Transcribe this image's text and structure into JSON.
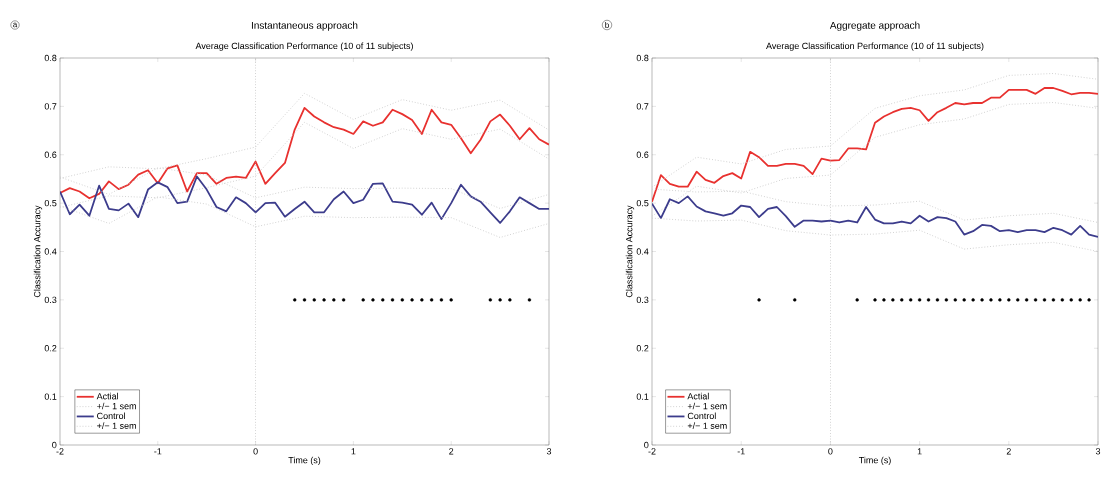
{
  "chart_data": [
    {
      "type": "line",
      "title": "Instantaneous approach",
      "subtitle": "Average Classification Performance (10 of 11 subjects)",
      "xlabel": "Time (s)",
      "ylabel": "Classification Accuracy",
      "annotations": [
        "a"
      ],
      "x": [
        -2,
        -1.9,
        -1.8,
        -1.7,
        -1.6,
        -1.5,
        -1.4,
        -1.3,
        -1.2,
        -1.1,
        -1,
        -0.9,
        -0.8,
        -0.7,
        -0.6,
        -0.5,
        -0.4,
        -0.3,
        -0.2,
        -0.1,
        0,
        0.1,
        0.2,
        0.3,
        0.4,
        0.5,
        0.6,
        0.7,
        0.8,
        0.9,
        1,
        1.1,
        1.2,
        1.3,
        1.4,
        1.5,
        1.6,
        1.7,
        1.8,
        1.9,
        2,
        2.1,
        2.2,
        2.3,
        2.4,
        2.5,
        2.6,
        2.7,
        2.8,
        2.9,
        3
      ],
      "series": [
        {
          "name": "Actial",
          "color": "#e8312f",
          "values": [
            0.521,
            0.531,
            0.524,
            0.51,
            0.519,
            0.545,
            0.529,
            0.538,
            0.559,
            0.568,
            0.541,
            0.572,
            0.578,
            0.524,
            0.562,
            0.562,
            0.54,
            0.552,
            0.555,
            0.552,
            0.586,
            0.54,
            0.562,
            0.583,
            0.652,
            0.697,
            0.679,
            0.667,
            0.657,
            0.652,
            0.643,
            0.669,
            0.66,
            0.667,
            0.693,
            0.684,
            0.672,
            0.643,
            0.693,
            0.667,
            0.662,
            0.634,
            0.603,
            0.631,
            0.669,
            0.683,
            0.66,
            0.632,
            0.655,
            0.632,
            0.621
          ]
        },
        {
          "name": "+/− 1 sem",
          "color": "#c8c8c8",
          "line_style": "dotted",
          "x": [
            -2,
            -1.5,
            -1,
            -0.5,
            0,
            0.5,
            1,
            1.5,
            2,
            2.5,
            3
          ],
          "values": [
            0.551,
            0.575,
            0.571,
            0.592,
            0.616,
            0.727,
            0.673,
            0.714,
            0.692,
            0.713,
            0.651
          ]
        },
        {
          "color": "#c8c8c8",
          "line_style": "dotted",
          "x": [
            -2,
            -1.5,
            -1,
            -0.5,
            0,
            0.5,
            1,
            1.5,
            2,
            2.5,
            3
          ],
          "values": [
            0.491,
            0.515,
            0.511,
            0.532,
            0.556,
            0.667,
            0.613,
            0.654,
            0.632,
            0.653,
            0.591
          ]
        },
        {
          "name": "Control",
          "color": "#3c3c8c",
          "values": [
            0.524,
            0.477,
            0.497,
            0.474,
            0.536,
            0.488,
            0.485,
            0.499,
            0.471,
            0.528,
            0.543,
            0.533,
            0.5,
            0.503,
            0.555,
            0.528,
            0.492,
            0.483,
            0.512,
            0.5,
            0.481,
            0.5,
            0.501,
            0.472,
            0.488,
            0.503,
            0.481,
            0.481,
            0.508,
            0.524,
            0.5,
            0.507,
            0.54,
            0.541,
            0.503,
            0.501,
            0.497,
            0.476,
            0.501,
            0.467,
            0.5,
            0.538,
            0.514,
            0.503,
            0.481,
            0.459,
            0.483,
            0.512,
            0.5,
            0.488,
            0.488
          ]
        },
        {
          "name": "+/− 1 sem",
          "color": "#c8c8c8",
          "line_style": "dotted",
          "x": [
            -2,
            -1.5,
            -1,
            -0.5,
            0,
            0.5,
            1,
            1.5,
            2,
            2.5,
            3
          ],
          "values": [
            0.554,
            0.518,
            0.573,
            0.558,
            0.511,
            0.533,
            0.53,
            0.531,
            0.53,
            0.489,
            0.518
          ]
        },
        {
          "color": "#c8c8c8",
          "line_style": "dotted",
          "x": [
            -2,
            -1.5,
            -1,
            -0.5,
            0,
            0.5,
            1,
            1.5,
            2,
            2.5,
            3
          ],
          "values": [
            0.494,
            0.458,
            0.513,
            0.498,
            0.451,
            0.473,
            0.47,
            0.471,
            0.47,
            0.429,
            0.458
          ]
        },
        {
          "type": "scatter",
          "marker": "circle",
          "color": "#000000",
          "x": [
            0.4,
            0.5,
            0.6,
            0.7,
            0.8,
            0.9,
            1.1,
            1.2,
            1.3,
            1.4,
            1.5,
            1.6,
            1.7,
            1.8,
            1.9,
            2.0,
            2.4,
            2.5,
            2.6,
            2.8
          ],
          "values": [
            0.3,
            0.3,
            0.3,
            0.3,
            0.3,
            0.3,
            0.3,
            0.3,
            0.3,
            0.3,
            0.3,
            0.3,
            0.3,
            0.3,
            0.3,
            0.3,
            0.3,
            0.3,
            0.3,
            0.3
          ]
        }
      ],
      "ref_lines": [
        {
          "axis": "x",
          "value": 0,
          "color": "#b4b4b4",
          "line_style": "dotted"
        }
      ],
      "xlim": [
        -2,
        3
      ],
      "ylim": [
        0,
        0.8
      ],
      "xticks": [
        -2,
        -1,
        0,
        1,
        2,
        3
      ],
      "yticks": [
        0,
        0.1,
        0.2,
        0.3,
        0.4,
        0.5,
        0.6,
        0.7,
        0.8
      ],
      "legend": "bottom left"
    },
    {
      "type": "line",
      "title": "Aggregate approach",
      "subtitle": "Average Classification Performance (10 of 11 subjects)",
      "xlabel": "Time (s)",
      "ylabel": "Classification Accuracy",
      "annotations": [
        "b"
      ],
      "x": [
        -2,
        -1.9,
        -1.8,
        -1.7,
        -1.6,
        -1.5,
        -1.4,
        -1.3,
        -1.2,
        -1.1,
        -1,
        -0.9,
        -0.8,
        -0.7,
        -0.6,
        -0.5,
        -0.4,
        -0.3,
        -0.2,
        -0.1,
        0,
        0.1,
        0.2,
        0.3,
        0.4,
        0.5,
        0.6,
        0.7,
        0.8,
        0.9,
        1,
        1.1,
        1.2,
        1.3,
        1.4,
        1.5,
        1.6,
        1.7,
        1.8,
        1.9,
        2,
        2.1,
        2.2,
        2.3,
        2.4,
        2.5,
        2.6,
        2.7,
        2.8,
        2.9,
        3
      ],
      "series": [
        {
          "name": "Actial",
          "color": "#e8312f",
          "values": [
            0.503,
            0.558,
            0.54,
            0.534,
            0.534,
            0.565,
            0.548,
            0.542,
            0.556,
            0.562,
            0.551,
            0.606,
            0.595,
            0.577,
            0.577,
            0.581,
            0.581,
            0.577,
            0.56,
            0.592,
            0.588,
            0.589,
            0.613,
            0.613,
            0.611,
            0.666,
            0.679,
            0.688,
            0.695,
            0.697,
            0.692,
            0.67,
            0.688,
            0.697,
            0.707,
            0.704,
            0.707,
            0.707,
            0.718,
            0.718,
            0.734,
            0.734,
            0.734,
            0.726,
            0.738,
            0.738,
            0.732,
            0.725,
            0.728,
            0.728,
            0.726
          ]
        },
        {
          "name": "+/− 1 sem",
          "color": "#c8c8c8",
          "line_style": "dotted",
          "x": [
            -2,
            -1.5,
            -1,
            -0.5,
            0,
            0.5,
            1,
            1.5,
            2,
            2.5,
            3
          ],
          "values": [
            0.533,
            0.595,
            0.581,
            0.611,
            0.618,
            0.696,
            0.722,
            0.734,
            0.764,
            0.768,
            0.756
          ]
        },
        {
          "color": "#c8c8c8",
          "line_style": "dotted",
          "x": [
            -2,
            -1.5,
            -1,
            -0.5,
            0,
            0.5,
            1,
            1.5,
            2,
            2.5,
            3
          ],
          "values": [
            0.473,
            0.535,
            0.521,
            0.551,
            0.558,
            0.636,
            0.662,
            0.674,
            0.704,
            0.708,
            0.696
          ]
        },
        {
          "name": "Control",
          "color": "#3c3c8c",
          "values": [
            0.499,
            0.469,
            0.508,
            0.5,
            0.514,
            0.493,
            0.483,
            0.479,
            0.474,
            0.479,
            0.495,
            0.492,
            0.471,
            0.488,
            0.492,
            0.473,
            0.451,
            0.464,
            0.464,
            0.462,
            0.464,
            0.46,
            0.464,
            0.46,
            0.492,
            0.466,
            0.458,
            0.458,
            0.462,
            0.458,
            0.474,
            0.462,
            0.471,
            0.469,
            0.462,
            0.435,
            0.442,
            0.455,
            0.453,
            0.442,
            0.444,
            0.44,
            0.444,
            0.444,
            0.44,
            0.449,
            0.444,
            0.435,
            0.453,
            0.435,
            0.43
          ]
        },
        {
          "name": "+/− 1 sem",
          "color": "#c8c8c8",
          "line_style": "dotted",
          "x": [
            -2,
            -1.5,
            -1,
            -0.5,
            0,
            0.5,
            1,
            1.5,
            2,
            2.5,
            3
          ],
          "values": [
            0.529,
            0.523,
            0.525,
            0.503,
            0.494,
            0.496,
            0.504,
            0.465,
            0.474,
            0.479,
            0.46
          ]
        },
        {
          "color": "#c8c8c8",
          "line_style": "dotted",
          "x": [
            -2,
            -1.5,
            -1,
            -0.5,
            0,
            0.5,
            1,
            1.5,
            2,
            2.5,
            3
          ],
          "values": [
            0.469,
            0.463,
            0.465,
            0.443,
            0.434,
            0.436,
            0.444,
            0.405,
            0.414,
            0.419,
            0.4
          ]
        },
        {
          "type": "scatter",
          "marker": "circle",
          "color": "#000000",
          "x": [
            -0.8,
            -0.4,
            0.3,
            0.5,
            0.6,
            0.7,
            0.8,
            0.9,
            1.0,
            1.1,
            1.2,
            1.3,
            1.4,
            1.5,
            1.6,
            1.7,
            1.8,
            1.9,
            2.0,
            2.1,
            2.2,
            2.3,
            2.4,
            2.5,
            2.6,
            2.7,
            2.8,
            2.9
          ],
          "values": [
            0.3,
            0.3,
            0.3,
            0.3,
            0.3,
            0.3,
            0.3,
            0.3,
            0.3,
            0.3,
            0.3,
            0.3,
            0.3,
            0.3,
            0.3,
            0.3,
            0.3,
            0.3,
            0.3,
            0.3,
            0.3,
            0.3,
            0.3,
            0.3,
            0.3,
            0.3,
            0.3,
            0.3
          ]
        }
      ],
      "ref_lines": [
        {
          "axis": "x",
          "value": 0,
          "color": "#b4b4b4",
          "line_style": "dotted"
        }
      ],
      "xlim": [
        -2,
        3
      ],
      "ylim": [
        0,
        0.8
      ],
      "xticks": [
        -2,
        -1,
        0,
        1,
        2,
        3
      ],
      "yticks": [
        0,
        0.1,
        0.2,
        0.3,
        0.4,
        0.5,
        0.6,
        0.7,
        0.8
      ],
      "legend": "bottom left"
    }
  ]
}
